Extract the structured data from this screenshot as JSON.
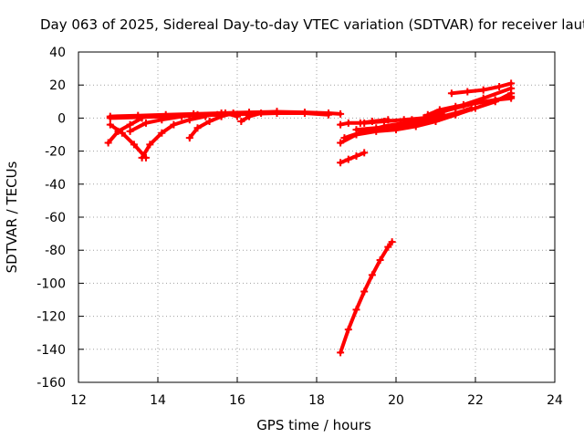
{
  "chart_data": {
    "type": "scatter",
    "title": "Day 063 of 2025, Sidereal Day-to-day VTEC variation (SDTVAR) for receiver laut",
    "xlabel": "GPS time / hours",
    "ylabel": "SDTVAR / TECUs",
    "xlim": [
      12,
      24
    ],
    "ylim": [
      -160,
      40
    ],
    "xticks": [
      12,
      14,
      16,
      18,
      20,
      22,
      24
    ],
    "yticks": [
      -160,
      -140,
      -120,
      -100,
      -80,
      -60,
      -40,
      -20,
      0,
      20,
      40
    ],
    "grid": true,
    "legend": "none",
    "color": "#ff0000",
    "series": [
      {
        "x": [
          12.8,
          13.5,
          14.2,
          14.9,
          15.6,
          16.3,
          17.0,
          17.7,
          18.3,
          18.6
        ],
        "y": [
          1,
          1.5,
          2,
          2.5,
          3,
          3.5,
          3.8,
          3.5,
          3,
          2.5
        ]
      },
      {
        "x": [
          12.8,
          13.5,
          14.2,
          14.9,
          15.6,
          16.3,
          17.0,
          17.7,
          18.3
        ],
        "y": [
          0,
          0.5,
          1,
          1.5,
          2,
          2.5,
          3,
          3,
          2
        ]
      },
      {
        "x": [
          12.75,
          13.0,
          13.3,
          13.6
        ],
        "y": [
          -15,
          -8,
          -4,
          0
        ]
      },
      {
        "x": [
          12.8,
          13.1,
          13.4,
          13.7
        ],
        "y": [
          -4,
          -9,
          -16,
          -24
        ]
      },
      {
        "x": [
          13.3,
          13.7,
          14.1,
          14.6,
          15.0
        ],
        "y": [
          -8,
          -3,
          -1,
          1,
          2
        ]
      },
      {
        "x": [
          13.6,
          13.8,
          14.1,
          14.4,
          14.8,
          15.2
        ],
        "y": [
          -24,
          -16,
          -9,
          -4,
          -1,
          1
        ]
      },
      {
        "x": [
          14.8,
          15.0,
          15.3,
          15.6,
          15.9
        ],
        "y": [
          -12,
          -6,
          -2,
          1,
          3
        ]
      },
      {
        "x": [
          15.5,
          15.7,
          16.0
        ],
        "y": [
          2,
          3,
          1
        ]
      },
      {
        "x": [
          16.1,
          16.3,
          16.6,
          17.0
        ],
        "y": [
          -2,
          1,
          3,
          4
        ]
      },
      {
        "x": [
          18.6,
          18.8,
          19.1,
          19.4,
          19.8
        ],
        "y": [
          -4,
          -3,
          -3,
          -2,
          -1
        ]
      },
      {
        "x": [
          18.6,
          19.0,
          19.5,
          20.0,
          20.5,
          21.0,
          21.5,
          22.0,
          22.5,
          22.9
        ],
        "y": [
          -15,
          -10,
          -8,
          -7,
          -5,
          -2,
          2,
          6,
          10,
          15
        ]
      },
      {
        "x": [
          18.7,
          19.2,
          19.7,
          20.2,
          20.7,
          21.2,
          21.7,
          22.2,
          22.9
        ],
        "y": [
          -12,
          -8,
          -5,
          -3,
          0,
          4,
          8,
          12,
          18
        ]
      },
      {
        "x": [
          19.0,
          19.5,
          20.0,
          20.5,
          21.0,
          21.5,
          21.9
        ],
        "y": [
          -7,
          -6,
          -5,
          -3,
          0,
          3,
          6
        ]
      },
      {
        "x": [
          19.2,
          19.7,
          20.2,
          20.7,
          21.2
        ],
        "y": [
          -3,
          -2,
          -1,
          0,
          2
        ]
      },
      {
        "x": [
          20.4,
          20.7,
          21.0,
          21.5,
          22.0,
          22.5,
          22.9
        ],
        "y": [
          -1,
          0,
          3,
          6,
          9,
          11,
          12
        ]
      },
      {
        "x": [
          20.8,
          21.1,
          21.5,
          22.0,
          22.5,
          22.9
        ],
        "y": [
          2,
          5,
          7,
          9,
          11,
          13
        ]
      },
      {
        "x": [
          21.4,
          21.8,
          22.2,
          22.6,
          22.9
        ],
        "y": [
          15,
          16,
          17,
          19,
          21
        ]
      },
      {
        "x": [
          18.6,
          18.8,
          19.0,
          19.2
        ],
        "y": [
          -27,
          -25,
          -23,
          -21
        ]
      },
      {
        "x": [
          18.6,
          18.8,
          19.0,
          19.2,
          19.4,
          19.6,
          19.8,
          19.9
        ],
        "y": [
          -142,
          -128,
          -116,
          -105,
          -95,
          -86,
          -78,
          -75
        ]
      }
    ]
  }
}
